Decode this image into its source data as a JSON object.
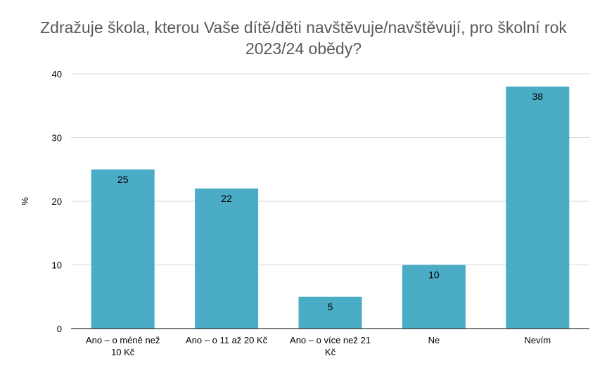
{
  "chart_data": {
    "type": "bar",
    "title_lines": [
      "Zdražuje škola, kterou Vaše dítě/děti navštěvuje/navštěvují, pro školní rok",
      "2023/24 obědy?"
    ],
    "xlabel": "",
    "ylabel": "%",
    "ylim": [
      0,
      40
    ],
    "yticks": [
      0,
      10,
      20,
      30,
      40
    ],
    "categories": [
      [
        "Ano – o méně než",
        "10 Kč"
      ],
      [
        "Ano – o 11 až 20 Kč"
      ],
      [
        "Ano – o více než 21",
        "Kč"
      ],
      [
        "Ne"
      ],
      [
        "Nevím"
      ]
    ],
    "values": [
      25,
      22,
      5,
      10,
      38
    ],
    "grid": true,
    "legend": "none",
    "colors": {
      "bar": "#4BACC6",
      "grid": "#D9D9D9",
      "axis": "#000000",
      "text": "#000000",
      "title": "#595959"
    }
  }
}
